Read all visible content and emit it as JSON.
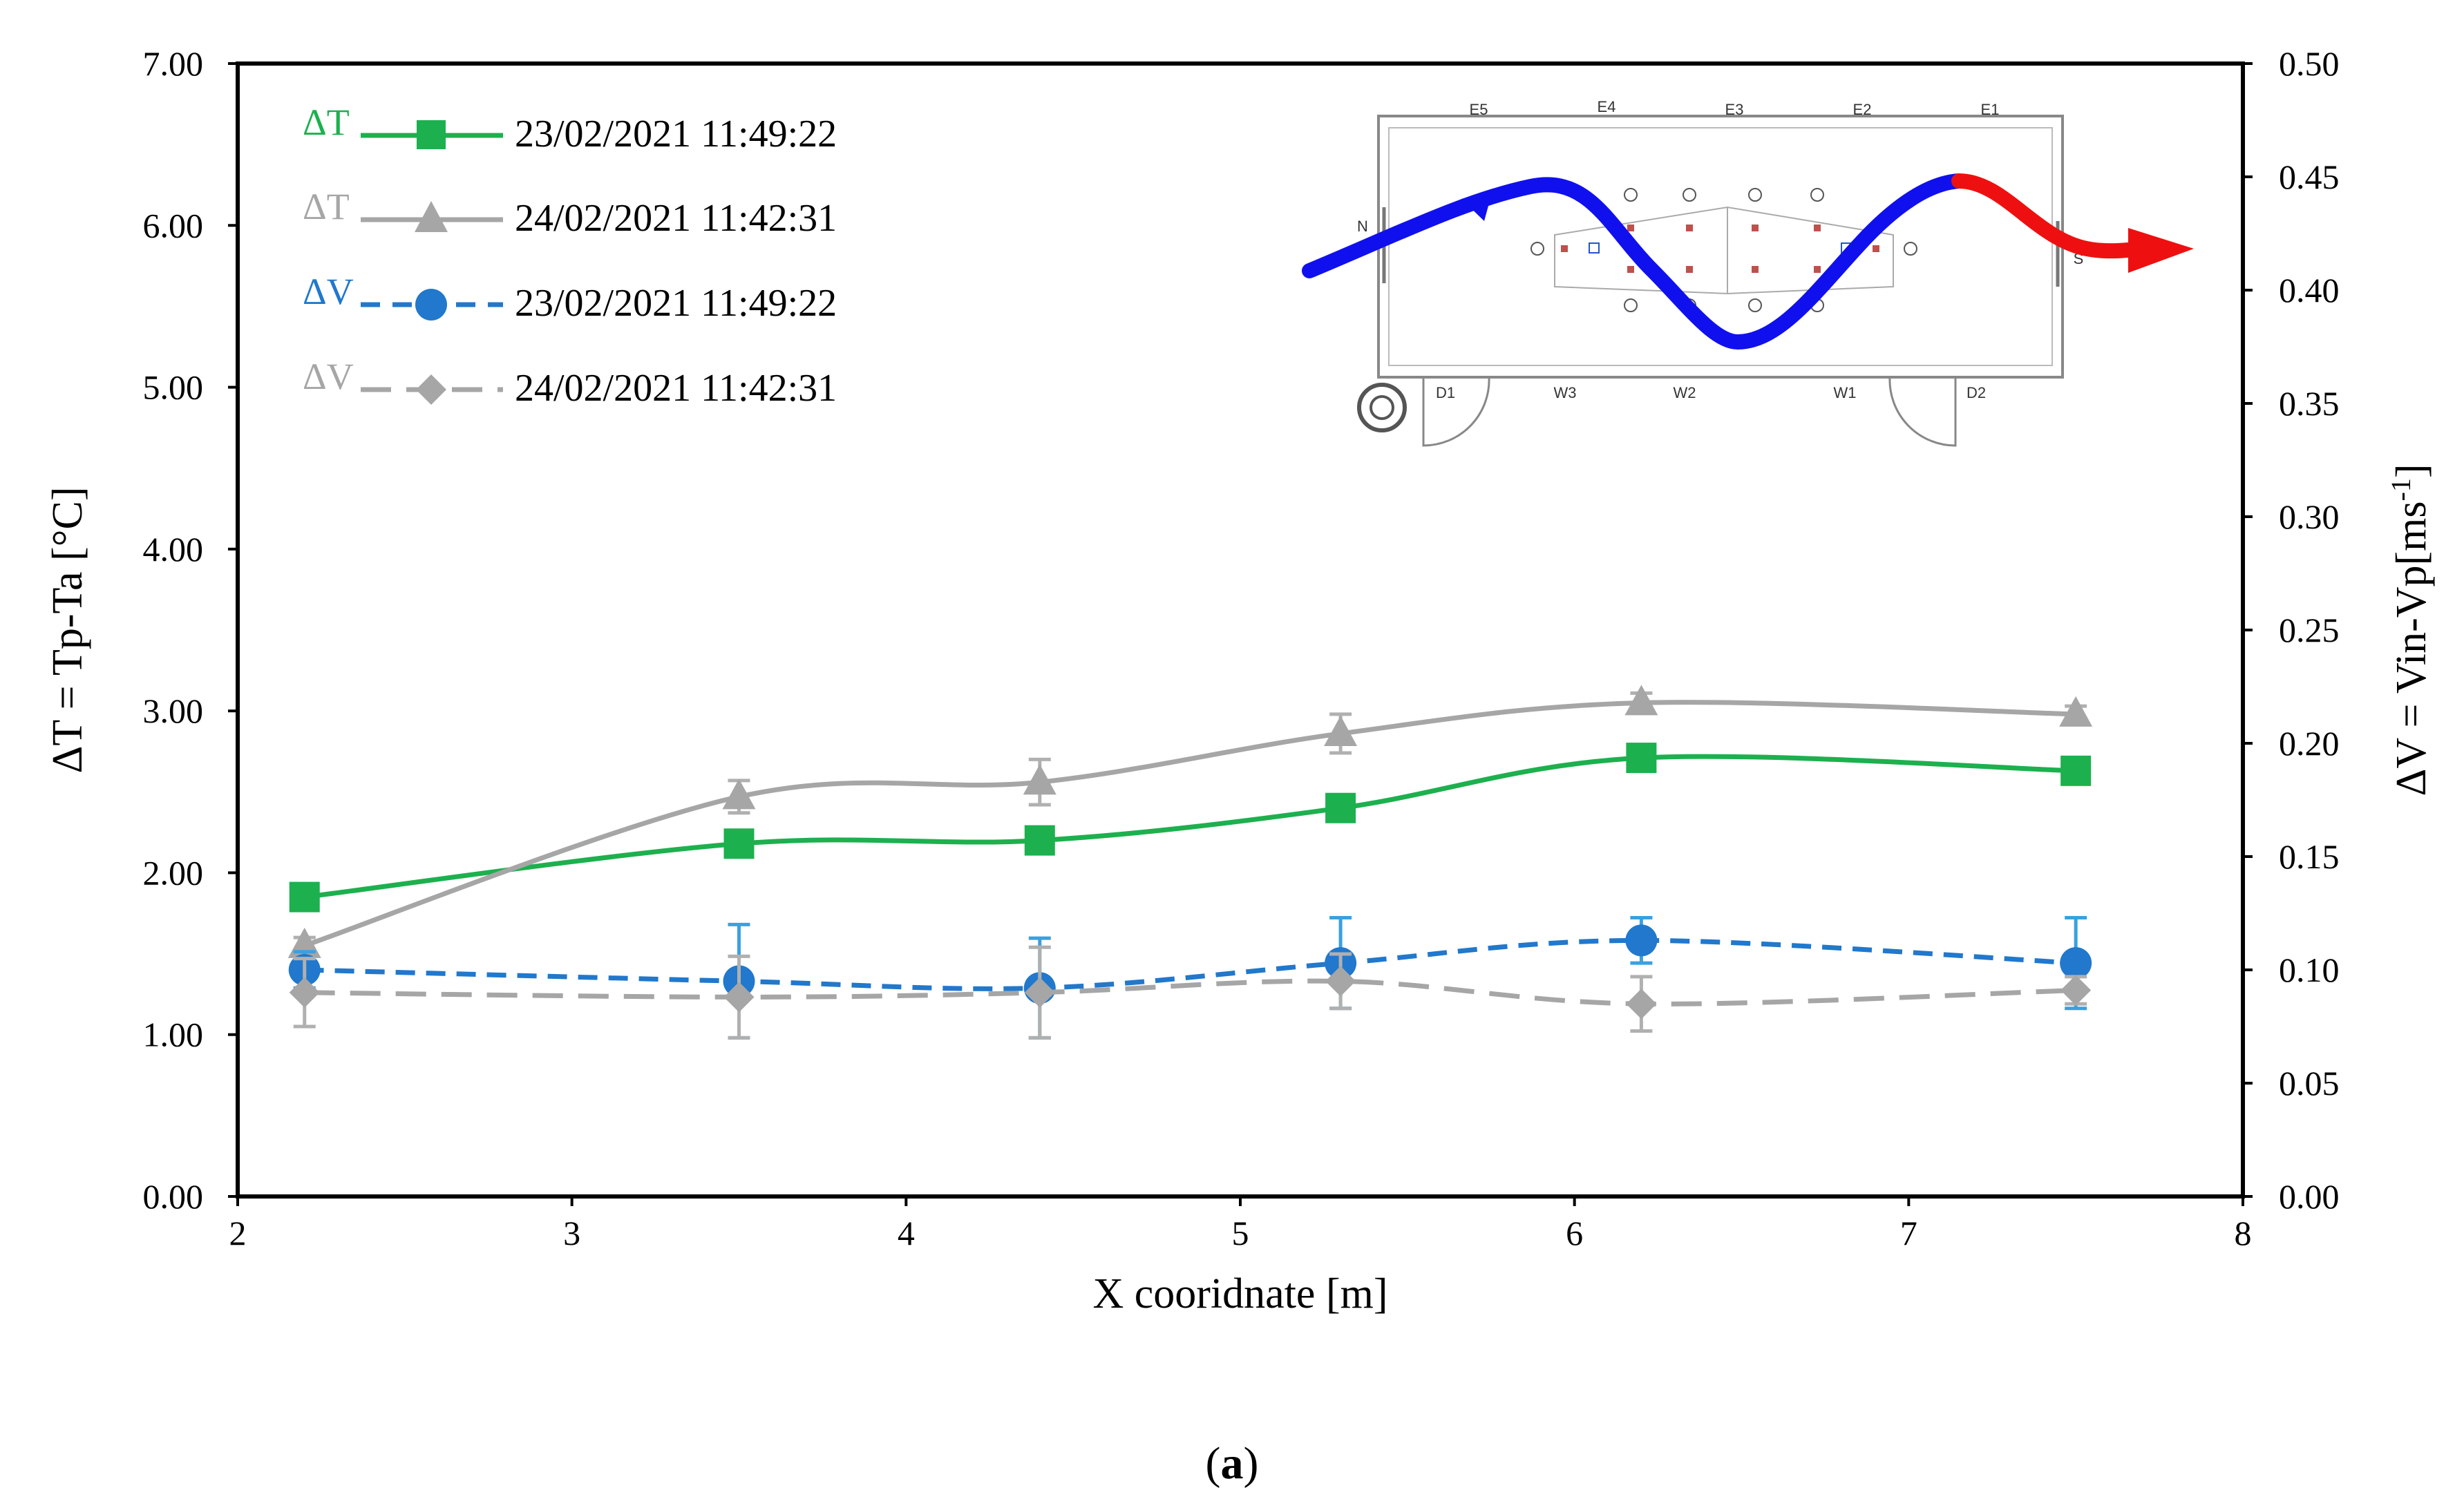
{
  "chart_data": {
    "type": "line",
    "title": "",
    "xlabel": "X cooridnate [m]",
    "ylabel_left": "ΔT = Tp-Ta [°C]",
    "ylabel_right_main": "ΔV = Vin-Vp[ms",
    "ylabel_right_sup": "-1",
    "ylabel_right_close": "]",
    "xlim": [
      2,
      8
    ],
    "ylim_left": [
      0,
      7
    ],
    "ylim_right": [
      0,
      0.5
    ],
    "x_ticks": [
      "2",
      "3",
      "4",
      "5",
      "6",
      "7",
      "8"
    ],
    "y_left_ticks": [
      "0.00",
      "1.00",
      "2.00",
      "3.00",
      "4.00",
      "5.00",
      "6.00",
      "7.00"
    ],
    "y_right_ticks": [
      "0.00",
      "0.05",
      "0.10",
      "0.15",
      "0.20",
      "0.25",
      "0.30",
      "0.35",
      "0.40",
      "0.45",
      "0.50"
    ],
    "grid": false,
    "legend_position": "top-left",
    "x": [
      2.2,
      3.5,
      4.4,
      5.3,
      6.2,
      7.5
    ],
    "series": [
      {
        "name": "23/02/2021 11:49:22",
        "symbol": "ΔT",
        "axis": "left",
        "color": "#1db04e",
        "marker": "square",
        "dash": "solid",
        "values": [
          1.85,
          2.18,
          2.2,
          2.4,
          2.71,
          2.63
        ]
      },
      {
        "name": "24/02/2021 11:42:31",
        "symbol": "ΔT",
        "axis": "left",
        "color": "#a6a6a6",
        "marker": "triangle",
        "dash": "solid",
        "values": [
          1.55,
          2.47,
          2.56,
          2.86,
          3.05,
          2.98
        ],
        "errors": [
          0.05,
          0.1,
          0.14,
          0.12,
          0.06,
          0.05
        ]
      },
      {
        "name": "23/02/2021 11:49:22",
        "symbol": "ΔV",
        "axis": "right",
        "color": "#2178cc",
        "marker": "circle",
        "dash": "dashed",
        "values": [
          0.1,
          0.095,
          0.092,
          0.103,
          0.113,
          0.103
        ],
        "errors": [
          0.008,
          0.025,
          0.022,
          0.02,
          0.01,
          0.02
        ]
      },
      {
        "name": "24/02/2021 11:42:31",
        "symbol": "ΔV",
        "axis": "right",
        "color": "#a6a6a6",
        "marker": "diamond",
        "dash": "long-dash",
        "values": [
          0.09,
          0.088,
          0.09,
          0.095,
          0.085,
          0.091
        ],
        "errors": [
          0.015,
          0.018,
          0.02,
          0.012,
          0.012,
          0.006
        ]
      }
    ],
    "inset": {
      "top_labels": [
        "E5",
        "E4",
        "E3",
        "E2",
        "E1"
      ],
      "bottom_labels": [
        "D1",
        "W3",
        "W2",
        "W1",
        "D2"
      ],
      "side_labels": [
        "N",
        "S"
      ]
    },
    "panel_label_open": "(",
    "panel_label": "a",
    "panel_label_close": ")"
  }
}
